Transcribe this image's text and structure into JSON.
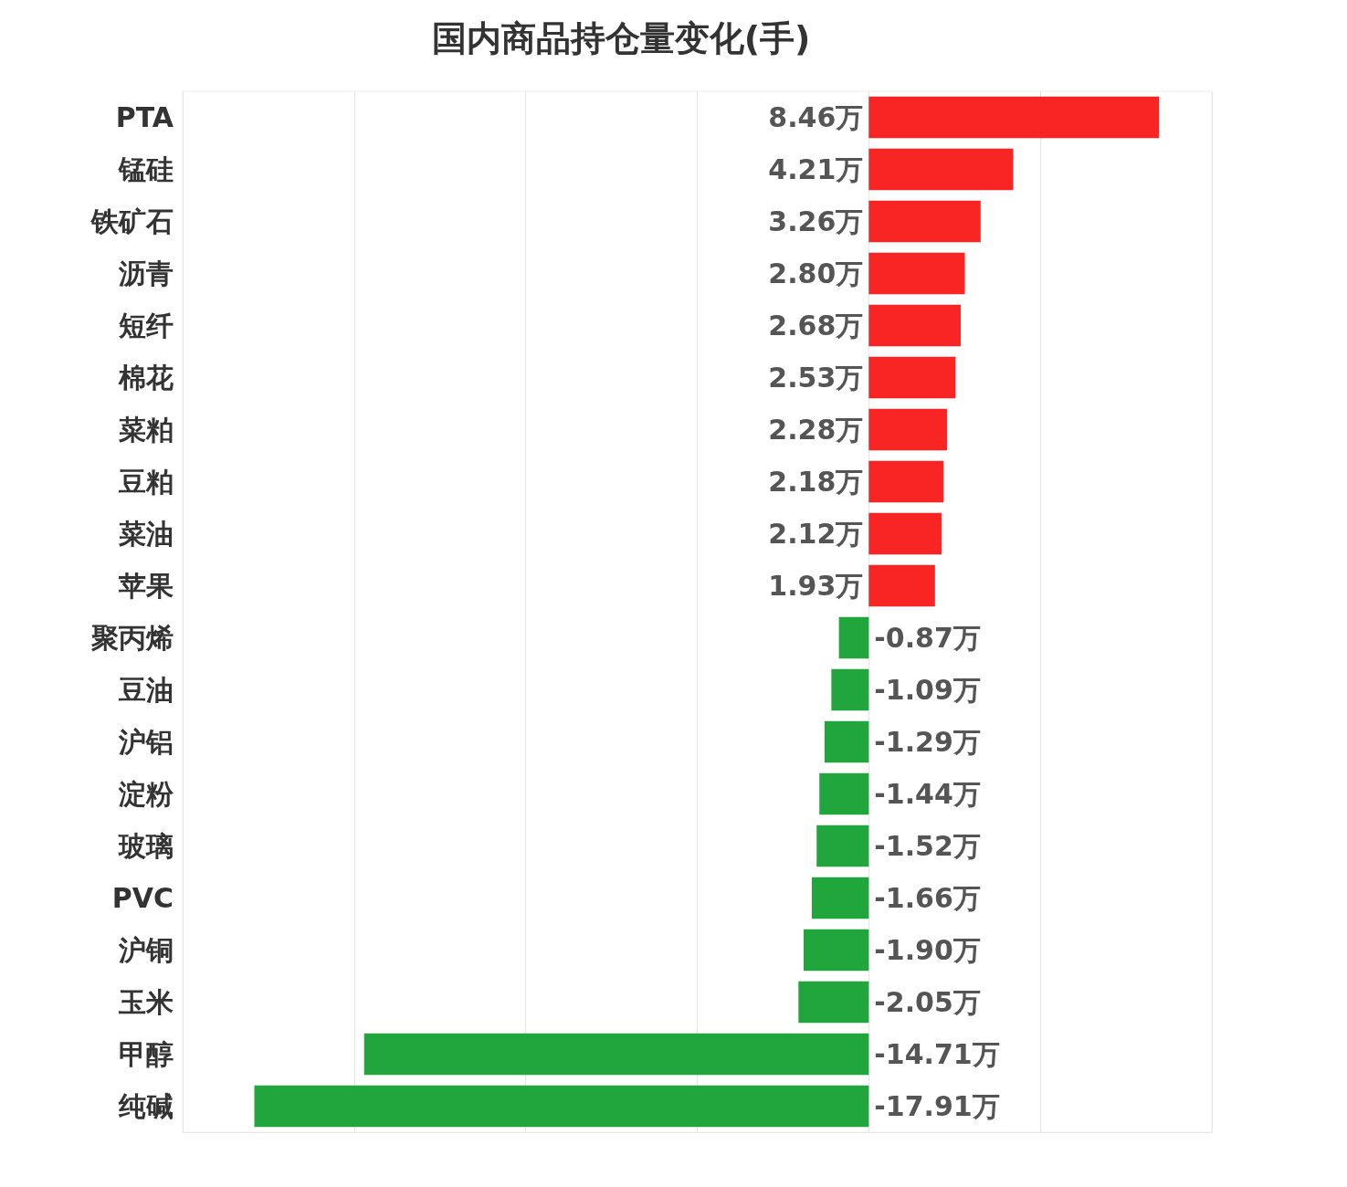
{
  "chart_data": {
    "type": "bar",
    "orientation": "horizontal",
    "title": "国内商品持仓量变化(手)",
    "categories": [
      "PTA",
      "锰硅",
      "铁矿石",
      "沥青",
      "短纤",
      "棉花",
      "菜粕",
      "豆粕",
      "菜油",
      "苹果",
      "聚丙烯",
      "豆油",
      "沪铝",
      "淀粉",
      "玻璃",
      "PVC",
      "沪铜",
      "玉米",
      "甲醇",
      "纯碱"
    ],
    "values": [
      8.46,
      4.21,
      3.26,
      2.8,
      2.68,
      2.53,
      2.28,
      2.18,
      2.12,
      1.93,
      -0.87,
      -1.09,
      -1.29,
      -1.44,
      -1.52,
      -1.66,
      -1.9,
      -2.05,
      -14.71,
      -17.91
    ],
    "value_labels": [
      "8.46万",
      "4.21万",
      "3.26万",
      "2.80万",
      "2.68万",
      "2.53万",
      "2.28万",
      "2.18万",
      "2.12万",
      "1.93万",
      "-0.87万",
      "-1.09万",
      "-1.29万",
      "-1.44万",
      "-1.52万",
      "-1.66万",
      "-1.90万",
      "-2.05万",
      "-14.71万",
      "-17.91万"
    ],
    "colors": [
      "#f92525",
      "#f92525",
      "#f92525",
      "#f92525",
      "#f92525",
      "#f92525",
      "#f92525",
      "#f92525",
      "#f92525",
      "#f92525",
      "#21a63e",
      "#21a63e",
      "#21a63e",
      "#21a63e",
      "#21a63e",
      "#21a63e",
      "#21a63e",
      "#21a63e",
      "#21a63e",
      "#21a63e"
    ],
    "xlim": [
      -20,
      10
    ],
    "xticks": [
      {
        "value": -20,
        "label": null
      },
      {
        "value": -15,
        "label": null
      },
      {
        "value": -10,
        "label": null
      },
      {
        "value": -5,
        "label": null
      },
      {
        "value": 0,
        "label": null
      },
      {
        "value": 5,
        "label": null
      },
      {
        "value": 10,
        "label": null
      }
    ],
    "grid": "x",
    "tick_labels": "y"
  }
}
